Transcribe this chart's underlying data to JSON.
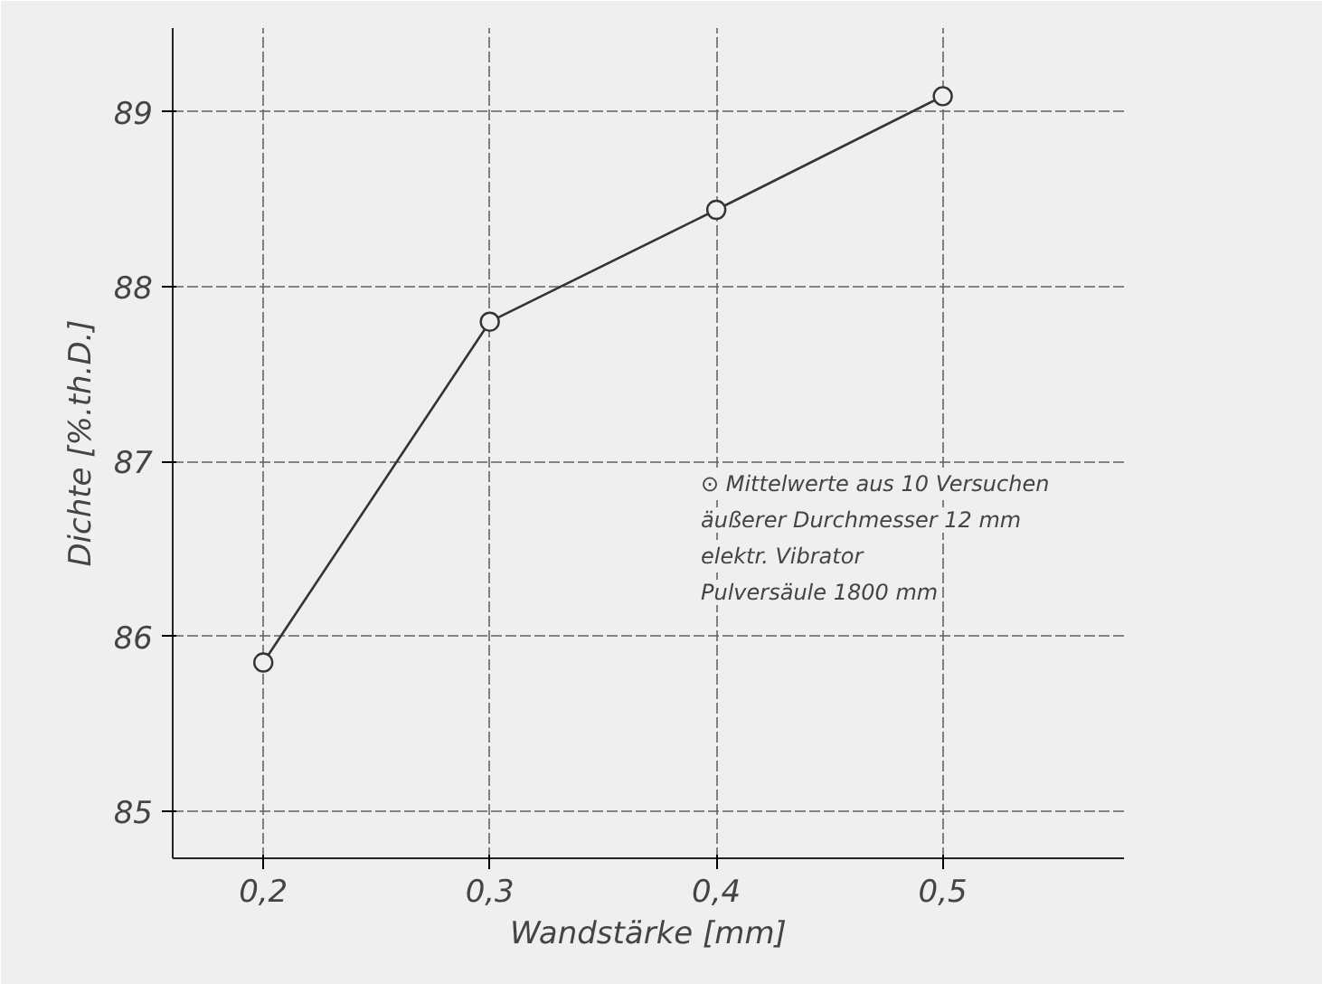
{
  "chart_data": {
    "type": "line",
    "xlabel": "Wandstärke [mm]",
    "ylabel": "Dichte [%.th.D.]",
    "x": [
      0.2,
      0.3,
      0.4,
      0.5
    ],
    "series": [
      {
        "color": "#333333",
        "values": [
          85.85,
          87.8,
          88.44,
          89.09
        ]
      }
    ],
    "xlim": [
      0.16,
      0.58
    ],
    "ylim": [
      84.73,
      89.48
    ],
    "xticks": [
      {
        "value": 0.2,
        "label": "0,2"
      },
      {
        "value": 0.3,
        "label": "0,3"
      },
      {
        "value": 0.4,
        "label": "0,4"
      },
      {
        "value": 0.5,
        "label": "0,5"
      }
    ],
    "yticks": [
      85,
      86,
      87,
      88,
      89
    ],
    "grid": true,
    "marker": "circle",
    "line_style": "solid",
    "annotations": [
      "⊙ Mittelwerte aus 10 Versuchen",
      "äußerer Durchmesser 12 mm",
      "elektr. Vibrator",
      "Pulversäule 1800 mm"
    ]
  }
}
